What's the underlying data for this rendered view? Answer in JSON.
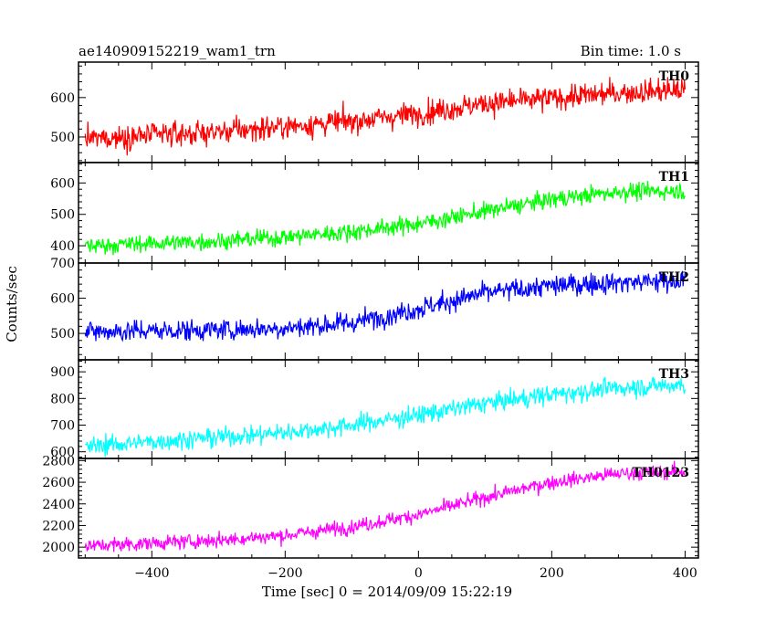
{
  "header": {
    "title": "ae140909152219_wam1_trn",
    "bin_time": "Bin time: 1.0 s"
  },
  "chart_data": {
    "type": "line",
    "title": "ae140909152219_wam1_trn",
    "xlabel": "Time [sec] 0 = 2014/09/09 15:22:19",
    "ylabel": "Counts/sec",
    "x_ticks": [
      -400,
      -200,
      0,
      200,
      400
    ],
    "x_tick_labels": [
      "−400",
      "−200",
      "0",
      "200",
      "400"
    ],
    "xlim": [
      -510,
      420
    ],
    "x": {
      "start": -500,
      "end": 400,
      "step": 1
    },
    "grid": false,
    "panels": [
      {
        "name": "TH0",
        "color": "#ff0000",
        "ylim": [
          435,
          690
        ],
        "yticks": [
          500,
          600
        ],
        "trend": [
          [
            -500,
            495
          ],
          [
            -300,
            513
          ],
          [
            -100,
            540
          ],
          [
            0,
            560
          ],
          [
            100,
            585
          ],
          [
            200,
            598
          ],
          [
            300,
            612
          ],
          [
            400,
            620
          ]
        ],
        "noise": 30
      },
      {
        "name": "TH1",
        "color": "#00ff00",
        "ylim": [
          345,
          665
        ],
        "yticks": [
          400,
          500,
          600
        ],
        "trend": [
          [
            -500,
            400
          ],
          [
            -300,
            415
          ],
          [
            -200,
            428
          ],
          [
            -100,
            445
          ],
          [
            0,
            470
          ],
          [
            100,
            510
          ],
          [
            200,
            548
          ],
          [
            300,
            572
          ],
          [
            400,
            575
          ]
        ],
        "noise": 27
      },
      {
        "name": "TH2",
        "color": "#0000ff",
        "ylim": [
          425,
          700
        ],
        "yticks": [
          500,
          600,
          700
        ],
        "trend": [
          [
            -500,
            505
          ],
          [
            -300,
            510
          ],
          [
            -200,
            515
          ],
          [
            -100,
            530
          ],
          [
            0,
            570
          ],
          [
            100,
            615
          ],
          [
            200,
            635
          ],
          [
            300,
            645
          ],
          [
            400,
            650
          ]
        ],
        "noise": 30
      },
      {
        "name": "TH3",
        "color": "#00ffff",
        "ylim": [
          575,
          945
        ],
        "yticks": [
          600,
          700,
          800,
          900
        ],
        "trend": [
          [
            -500,
            620
          ],
          [
            -300,
            655
          ],
          [
            -200,
            672
          ],
          [
            -100,
            700
          ],
          [
            0,
            738
          ],
          [
            100,
            782
          ],
          [
            200,
            815
          ],
          [
            300,
            840
          ],
          [
            400,
            852
          ]
        ],
        "noise": 35
      },
      {
        "name": "TH0123",
        "color": "#ff00ff",
        "ylim": [
          1900,
          2820
        ],
        "yticks": [
          2000,
          2200,
          2400,
          2600,
          2800
        ],
        "trend": [
          [
            -500,
            2010
          ],
          [
            -300,
            2065
          ],
          [
            -200,
            2110
          ],
          [
            -100,
            2190
          ],
          [
            0,
            2300
          ],
          [
            100,
            2460
          ],
          [
            200,
            2600
          ],
          [
            300,
            2680
          ],
          [
            400,
            2700
          ]
        ],
        "noise": 65
      }
    ]
  }
}
